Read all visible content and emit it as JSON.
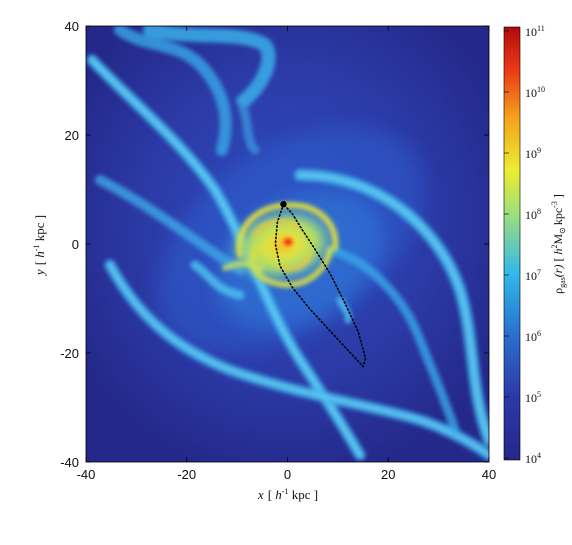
{
  "chart_data": {
    "type": "heatmap",
    "x_range": [
      -40,
      40
    ],
    "y_range": [
      -40,
      40
    ],
    "x_ticks": [
      -40,
      -20,
      0,
      20,
      40
    ],
    "y_ticks": [
      40,
      20,
      0,
      -20,
      -40
    ],
    "x_tick_labels": [
      "-40",
      "-20",
      "0",
      "20",
      "40"
    ],
    "y_tick_labels": [
      "40",
      "20",
      "0",
      "-20",
      "-40"
    ],
    "xlabel": {
      "var": "x",
      "pre": "[ ",
      "unit": "h",
      "sup": "-1",
      "post": " kpc ]"
    },
    "ylabel": {
      "var": "y",
      "pre": "[ ",
      "unit": "h",
      "sup": "-1",
      "post": " kpc ]"
    },
    "colorbar": {
      "scale": "log",
      "range": [
        10000,
        100000000000
      ],
      "tick_exponents": [
        4,
        5,
        6,
        7,
        8,
        9,
        10,
        11
      ],
      "tick_base": "10",
      "label": {
        "rho": "ρ",
        "sub": "gas",
        "arg": "(r)",
        "pre": " [ ",
        "h": "h",
        "hsup": "2",
        "m": "M",
        "msub": "⊙",
        "post": "kpc",
        "postsup": "-3",
        "end": " ]"
      }
    },
    "orbit": {
      "style": "dotted",
      "color": "#000000",
      "points": [
        [
          -0.8,
          7.3
        ],
        [
          -2.0,
          4.0
        ],
        [
          -2.4,
          0.0
        ],
        [
          -1.5,
          -4.0
        ],
        [
          1.0,
          -8.0
        ],
        [
          4.5,
          -12.0
        ],
        [
          8.5,
          -16.0
        ],
        [
          12.5,
          -20.0
        ],
        [
          15.0,
          -22.5
        ],
        [
          15.5,
          -21.0
        ],
        [
          14.0,
          -16.0
        ],
        [
          11.5,
          -11.0
        ],
        [
          8.5,
          -5.5
        ],
        [
          5.5,
          -1.0
        ],
        [
          3.0,
          2.5
        ],
        [
          1.0,
          5.5
        ],
        [
          -0.8,
          7.3
        ]
      ],
      "marker": [
        -0.8,
        7.3
      ]
    },
    "colors": {
      "background": "#27328c",
      "low": "#2b3ca2",
      "mid": "#2e8ee0",
      "stream": "#5bc6ef",
      "high": "#e8e23a",
      "core": "#e8401c"
    }
  }
}
